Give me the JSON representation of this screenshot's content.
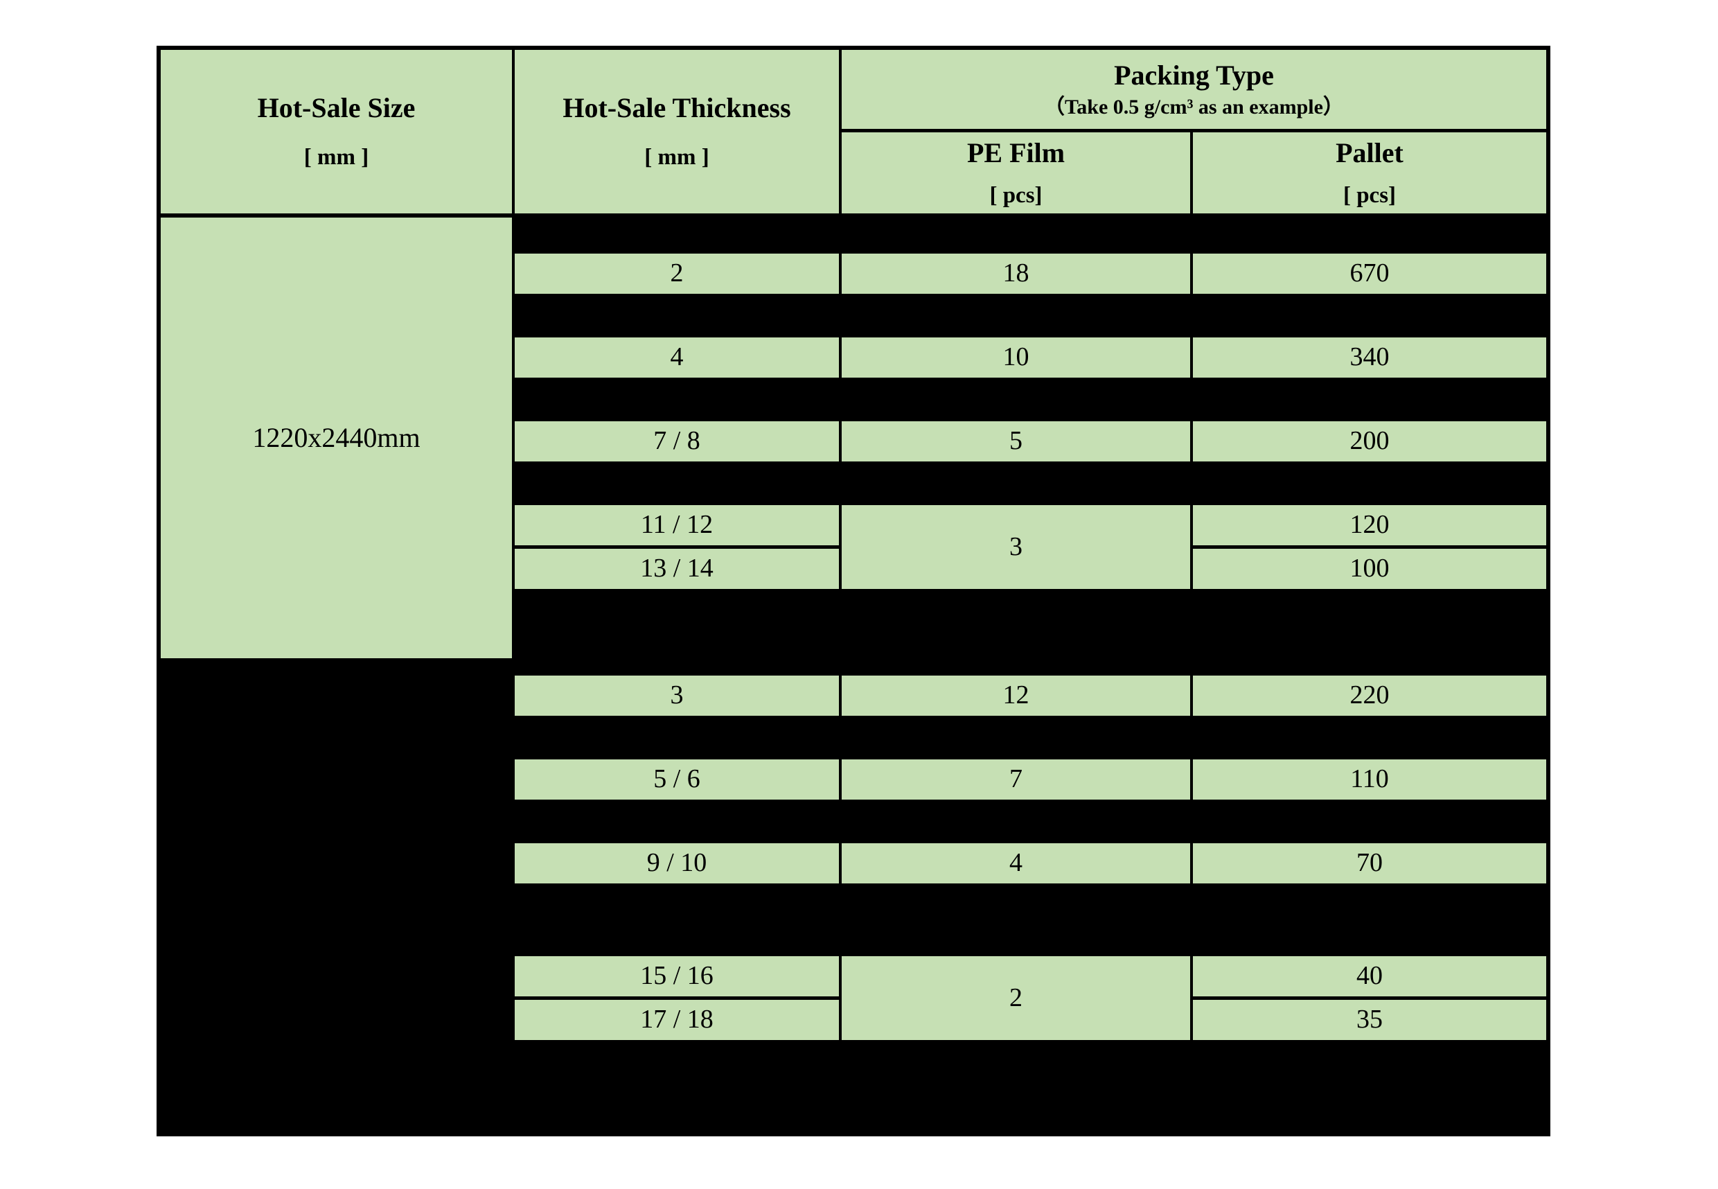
{
  "table": {
    "header": {
      "size_label": "Hot-Sale Size",
      "size_unit": "[ mm ]",
      "thickness_label": "Hot-Sale Thickness",
      "thickness_unit": "[ mm ]",
      "packing_label": "Packing Type",
      "packing_note": "（Take 0.5 g/cm³ as an example）",
      "pe_film_label": "PE Film",
      "pe_film_unit": "[ pcs]",
      "pallet_label": "Pallet",
      "pallet_unit": "[ pcs]"
    },
    "groups": [
      {
        "size": "1220x2440mm",
        "redacted": false
      },
      {
        "size": "",
        "redacted": true
      }
    ],
    "rows": [
      {
        "thickness": "2",
        "pe_film": "18",
        "pallet": "670"
      },
      {
        "thickness": "4",
        "pe_film": "10",
        "pallet": "340"
      },
      {
        "thickness": "7 / 8",
        "pe_film": "5",
        "pallet": "200"
      },
      {
        "thickness": "11 / 12",
        "pe_film": "3",
        "pallet": "120",
        "pe_film_merged_with_next": true
      },
      {
        "thickness": "13 / 14",
        "pe_film": "",
        "pallet": "100"
      },
      {
        "thickness": "3",
        "pe_film": "12",
        "pallet": "220"
      },
      {
        "thickness": "5 / 6",
        "pe_film": "7",
        "pallet": "110"
      },
      {
        "thickness": "9 / 10",
        "pe_film": "4",
        "pallet": "70"
      },
      {
        "thickness": "15 / 16",
        "pe_film": "2",
        "pallet": "40",
        "pe_film_merged_with_next": true
      },
      {
        "thickness": "17 / 18",
        "pe_film": "",
        "pallet": "35"
      }
    ]
  },
  "colors": {
    "cell_green": "#c6e0b4",
    "table_black": "#000000"
  }
}
